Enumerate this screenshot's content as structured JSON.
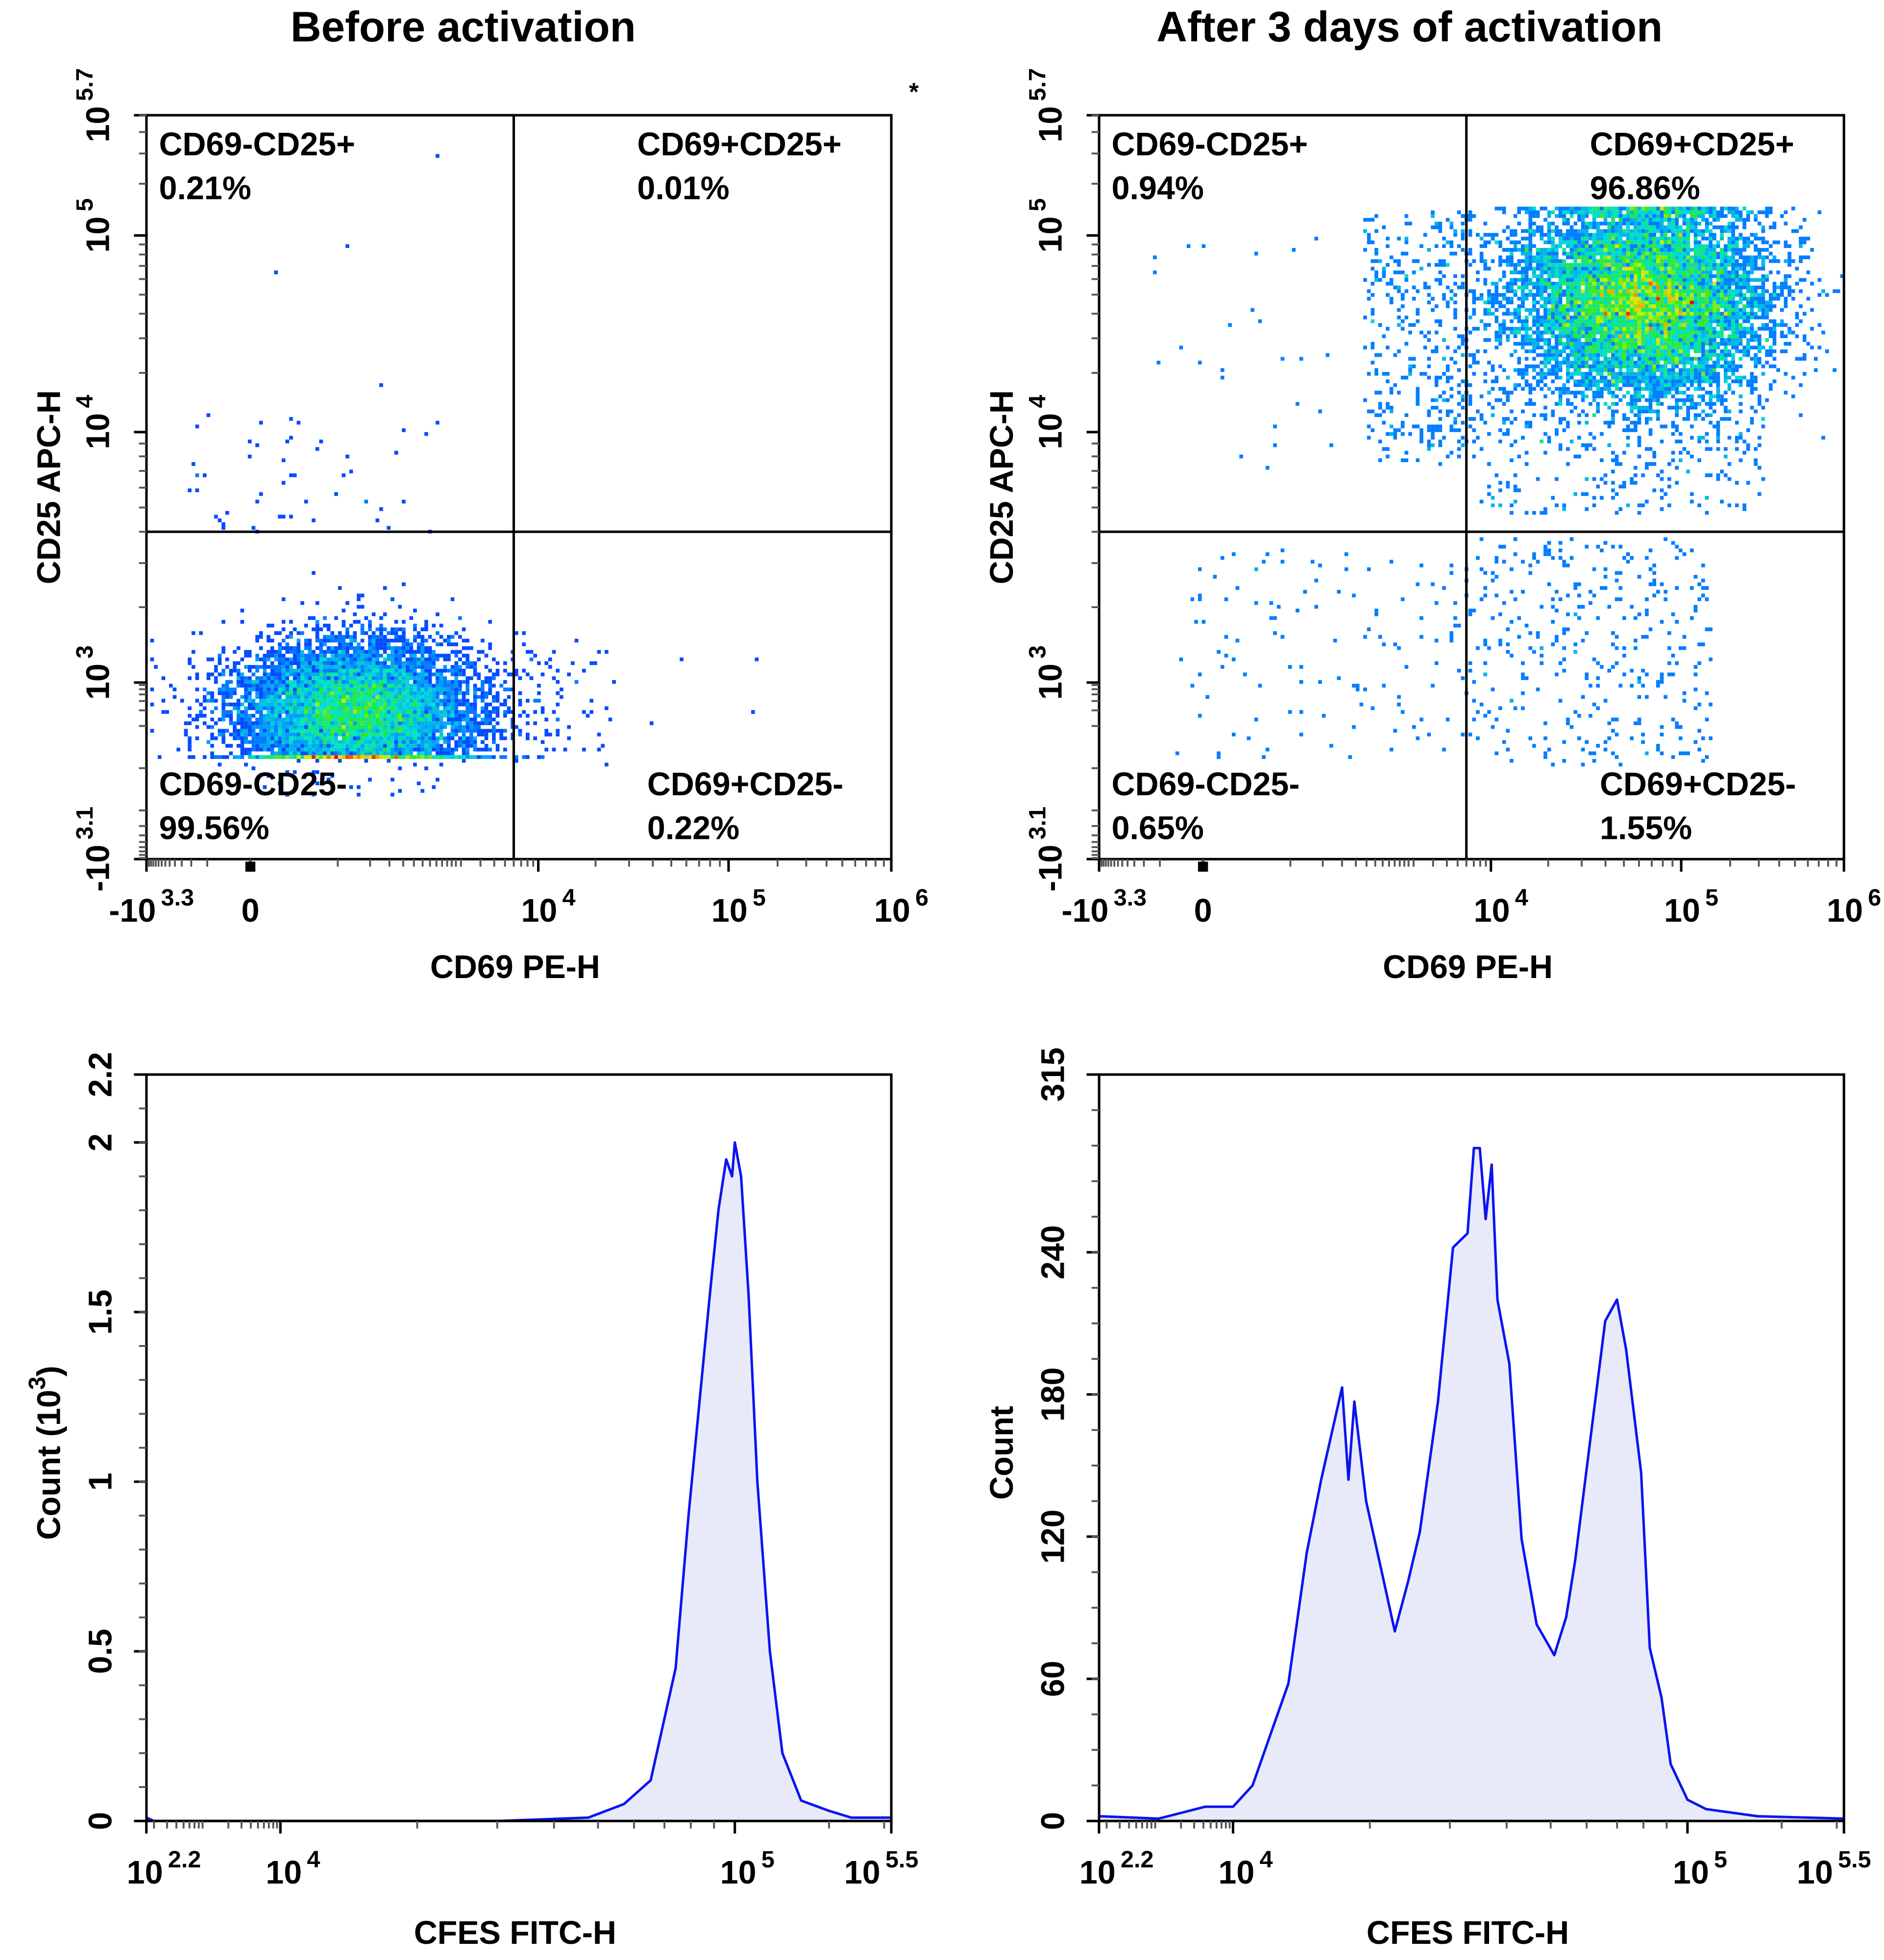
{
  "titles": {
    "left": "Before activation",
    "right": "After 3 days of activation"
  },
  "annotation": "*",
  "colors": {
    "histogram_line": "#0a14f0",
    "histogram_fill": "#e8eafa",
    "density_low": "#0000ff",
    "density_high": "#ff0000"
  },
  "chart_data": [
    {
      "panel": "before-dotplot",
      "type": "scatter",
      "style": "pseudocolor density dot plot",
      "xlabel": "CD69 PE-H",
      "ylabel": "CD25 APC-H",
      "x_scale": "biexponential",
      "y_scale": "biexponential",
      "xticks": [
        {
          "base": "-10",
          "exp": "3.3",
          "value": -1995
        },
        {
          "base": "0",
          "exp": "",
          "value": 0
        },
        {
          "base": "10",
          "exp": "4",
          "value": 10000
        },
        {
          "base": "10",
          "exp": "5",
          "value": 100000
        },
        {
          "base": "10",
          "exp": "6",
          "value": 1000000
        }
      ],
      "yticks": [
        {
          "base": "-10",
          "exp": "3.1",
          "value": -1259
        },
        {
          "base": "10",
          "exp": "3",
          "value": 1000
        },
        {
          "base": "10",
          "exp": "4",
          "value": 10000
        },
        {
          "base": "10",
          "exp": "5",
          "value": 100000
        },
        {
          "base": "10",
          "exp": "5.7",
          "value": 501187
        }
      ],
      "gates": {
        "x": 6000,
        "y": 4000
      },
      "quadrants": [
        {
          "position": "top-left",
          "label": "CD69-CD25+",
          "percent": "0.21%"
        },
        {
          "position": "top-right",
          "label": "CD69+CD25+",
          "percent": "0.01%"
        },
        {
          "position": "bottom-left",
          "label": "CD69-CD25-",
          "percent": "99.56%"
        },
        {
          "position": "bottom-right",
          "label": "CD69+CD25-",
          "percent": "0.22%"
        }
      ]
    },
    {
      "panel": "after-dotplot",
      "type": "scatter",
      "style": "pseudocolor density dot plot",
      "xlabel": "CD69 PE-H",
      "ylabel": "CD25 APC-H",
      "x_scale": "biexponential",
      "y_scale": "biexponential",
      "xticks": [
        {
          "base": "-10",
          "exp": "3.3",
          "value": -1995
        },
        {
          "base": "0",
          "exp": "",
          "value": 0
        },
        {
          "base": "10",
          "exp": "4",
          "value": 10000
        },
        {
          "base": "10",
          "exp": "5",
          "value": 100000
        },
        {
          "base": "10",
          "exp": "6",
          "value": 1000000
        }
      ],
      "yticks": [
        {
          "base": "-10",
          "exp": "3.1",
          "value": -1259
        },
        {
          "base": "10",
          "exp": "3",
          "value": 1000
        },
        {
          "base": "10",
          "exp": "4",
          "value": 10000
        },
        {
          "base": "10",
          "exp": "5",
          "value": 100000
        },
        {
          "base": "10",
          "exp": "5.7",
          "value": 501187
        }
      ],
      "gates": {
        "x": 6000,
        "y": 4000
      },
      "quadrants": [
        {
          "position": "top-left",
          "label": "CD69-CD25+",
          "percent": "0.94%"
        },
        {
          "position": "top-right",
          "label": "CD69+CD25+",
          "percent": "96.86%"
        },
        {
          "position": "bottom-left",
          "label": "CD69-CD25-",
          "percent": "0.65%"
        },
        {
          "position": "bottom-right",
          "label": "CD69+CD25-",
          "percent": "1.55%"
        }
      ]
    },
    {
      "panel": "before-histogram",
      "type": "area",
      "xlabel": "CFES FITC-H",
      "ylabel": "Count  (10",
      "ylabel_exp": "3",
      "ylabel_close": ")",
      "ylim": [
        0,
        2.2
      ],
      "xticks": [
        {
          "base": "10",
          "exp": "2.2",
          "value": 158
        },
        {
          "base": "10",
          "exp": "4",
          "value": 10000
        },
        {
          "base": "10",
          "exp": "5",
          "value": 100000
        },
        {
          "base": "10",
          "exp": "5.5",
          "value": 316228
        }
      ],
      "yticks": [
        {
          "label": "0",
          "value": 0
        },
        {
          "label": "0.5",
          "value": 0.5
        },
        {
          "label": "1",
          "value": 1
        },
        {
          "label": "1.5",
          "value": 1.5
        },
        {
          "label": "2",
          "value": 2
        },
        {
          "label": "2.2",
          "value": 2.2
        }
      ],
      "x": [
        158,
        200,
        1000,
        10000,
        30000,
        47600,
        57000,
        65300,
        74100,
        79100,
        88100,
        92000,
        95700,
        98600,
        100000,
        104700,
        110700,
        118000,
        129400,
        141900,
        163000,
        200000,
        235500,
        316200
      ],
      "y": [
        0.01,
        0.0,
        0.0,
        0.0,
        0.0,
        0.01,
        0.05,
        0.12,
        0.45,
        0.9,
        1.55,
        1.8,
        1.95,
        1.9,
        2.0,
        1.9,
        1.55,
        1.0,
        0.5,
        0.2,
        0.06,
        0.03,
        0.01,
        0.01
      ]
    },
    {
      "panel": "after-histogram",
      "type": "area",
      "xlabel": "CFES FITC-H",
      "ylabel": "Count",
      "ylim": [
        0,
        315
      ],
      "xticks": [
        {
          "base": "10",
          "exp": "2.2",
          "value": 158
        },
        {
          "base": "10",
          "exp": "4",
          "value": 10000
        },
        {
          "base": "10",
          "exp": "5",
          "value": 100000
        },
        {
          "base": "10",
          "exp": "5.5",
          "value": 316228
        }
      ],
      "yticks": [
        {
          "label": "0",
          "value": 0
        },
        {
          "label": "60",
          "value": 60
        },
        {
          "label": "120",
          "value": 120
        },
        {
          "label": "180",
          "value": 180
        },
        {
          "label": "240",
          "value": 240
        },
        {
          "label": "315",
          "value": 315
        }
      ],
      "x": [
        158,
        1000,
        4240,
        10000,
        11040,
        12110,
        13240,
        14520,
        15630,
        17380,
        17950,
        18490,
        19630,
        21480,
        22700,
        24270,
        25760,
        28250,
        30480,
        32810,
        33880,
        34910,
        35970,
        37070,
        38190,
        40550,
        43150,
        46560,
        50930,
        54080,
        56620,
        60120,
        65920,
        69980,
        73280,
        79070,
        82600,
        87700,
        91830,
        100000,
        114600,
        167500,
        316200
      ],
      "y": [
        2,
        1,
        6,
        6,
        15,
        37,
        58,
        113,
        144,
        183,
        144,
        177,
        135,
        101,
        80,
        101,
        122,
        177,
        242,
        248,
        284,
        284,
        254,
        277,
        220,
        193,
        119,
        83,
        70,
        86,
        110,
        150,
        211,
        220,
        199,
        147,
        73,
        52,
        24,
        9,
        5,
        2,
        1
      ]
    }
  ]
}
